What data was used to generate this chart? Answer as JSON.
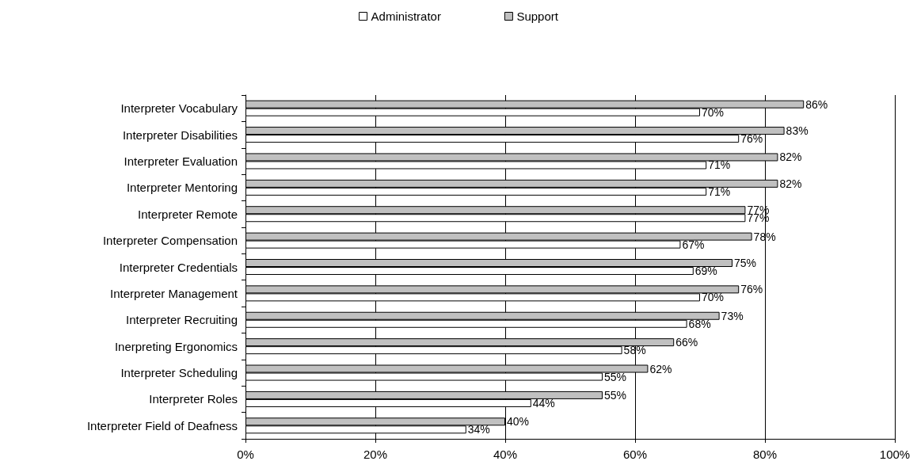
{
  "chart_data": {
    "type": "bar",
    "orientation": "horizontal",
    "categories": [
      "Interpreter Vocabulary",
      "Interpreter Disabilities",
      "Interpreter Evaluation",
      "Interpreter Mentoring",
      "Interpreter Remote",
      "Interpreter Compensation",
      "Interpreter Credentials",
      "Interpreter Management",
      "Interpreter Recruiting",
      "Inerpreting Ergonomics",
      "Interpreter Scheduling",
      "Interpreter Roles",
      "Interpreter Field of Deafness"
    ],
    "series": [
      {
        "name": "Support",
        "color": "#c0c0c0",
        "values": [
          86,
          83,
          82,
          82,
          77,
          78,
          75,
          76,
          73,
          66,
          62,
          55,
          40
        ],
        "value_labels": [
          "86%",
          "83%",
          "82%",
          "82%",
          "77%",
          "78%",
          "75%",
          "76%",
          "73%",
          "66%",
          "62%",
          "55%",
          "40%"
        ]
      },
      {
        "name": "Administrator",
        "color": "#ffffff",
        "values": [
          70,
          76,
          71,
          71,
          77,
          67,
          69,
          70,
          68,
          58,
          55,
          44,
          34
        ],
        "value_labels": [
          "70%",
          "76%",
          "71%",
          "71%",
          "77%",
          "67%",
          "69%",
          "70%",
          "68%",
          "58%",
          "55%",
          "44%",
          "34%"
        ]
      }
    ],
    "xlim": [
      0,
      100
    ],
    "xticks": [
      {
        "value": 0,
        "label": "0%"
      },
      {
        "value": 20,
        "label": "20%"
      },
      {
        "value": 40,
        "label": "40%"
      },
      {
        "value": 60,
        "label": "60%"
      },
      {
        "value": 80,
        "label": "80%"
      },
      {
        "value": 100,
        "label": "100%"
      }
    ],
    "grid": "x",
    "legend": "top"
  }
}
